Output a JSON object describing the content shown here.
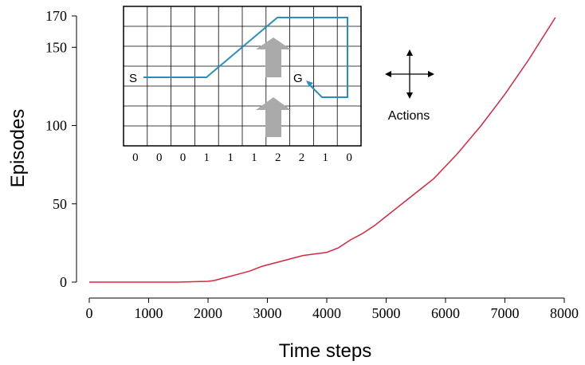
{
  "chart_data": {
    "type": "line",
    "xlabel": "Time steps",
    "ylabel": "Episodes",
    "xlim": [
      0,
      8000
    ],
    "ylim": [
      0,
      170
    ],
    "xticks": [
      0,
      1000,
      2000,
      3000,
      4000,
      5000,
      6000,
      7000,
      8000
    ],
    "yticks": [
      0,
      50,
      100,
      150,
      170
    ],
    "grid": false,
    "series": [
      {
        "color": "#d9263f",
        "x": [
          0,
          500,
          1000,
          1500,
          2000,
          2100,
          2300,
          2500,
          2700,
          2900,
          3000,
          3200,
          3400,
          3600,
          3800,
          4000,
          4200,
          4400,
          4600,
          4800,
          5000,
          5200,
          5400,
          5600,
          5800,
          6000,
          6200,
          6400,
          6600,
          6800,
          7000,
          7200,
          7400,
          7600,
          7850
        ],
        "y": [
          0,
          0,
          0,
          0,
          0.5,
          1,
          3,
          5,
          7,
          10,
          11,
          13,
          15,
          17,
          18,
          19,
          22,
          27,
          31,
          36,
          42,
          48,
          54,
          60,
          66,
          74,
          82,
          91,
          100,
          110,
          120,
          131,
          142,
          154,
          169
        ]
      }
    ],
    "inset": {
      "title": "",
      "grid_cols": 10,
      "grid_rows": 7,
      "column_labels": [
        "0",
        "0",
        "0",
        "1",
        "1",
        "1",
        "2",
        "2",
        "1",
        "0"
      ],
      "start_label": "S",
      "goal_label": "G",
      "path_color": "#2a8fc0",
      "wind_arrow_color": "#aaaaaa",
      "actions_label": "Actions"
    }
  }
}
